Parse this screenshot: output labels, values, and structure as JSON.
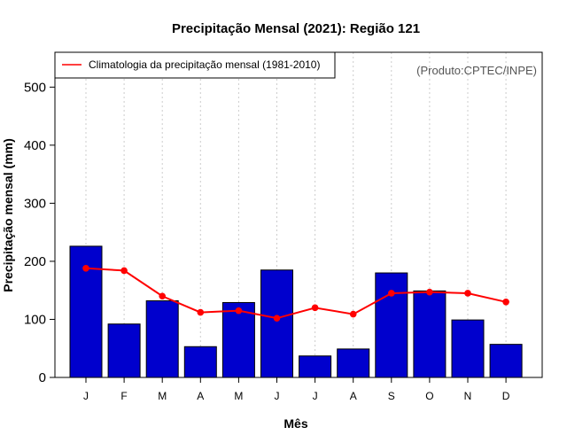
{
  "chart_data": {
    "type": "bar",
    "title": "Precipitação Mensal (2021): Região 121",
    "xlabel": "Mês",
    "ylabel": "Precipitação mensal (mm)",
    "ylim": [
      0,
      560
    ],
    "yticks": [
      0,
      100,
      200,
      300,
      400,
      500
    ],
    "categories": [
      "J",
      "F",
      "M",
      "A",
      "M",
      "J",
      "J",
      "A",
      "S",
      "O",
      "N",
      "D"
    ],
    "series": [
      {
        "name": "Precipitação mensal 2021",
        "type": "bar",
        "color": "#0000CD",
        "values": [
          226,
          92,
          132,
          53,
          129,
          185,
          37,
          49,
          180,
          149,
          99,
          57
        ]
      },
      {
        "name": "Climatologia da precipitação mensal (1981-2010)",
        "type": "line",
        "color": "#FF0000",
        "values": [
          188,
          184,
          140,
          112,
          115,
          102,
          120,
          109,
          145,
          147,
          145,
          130
        ]
      }
    ],
    "grid": "vertical dotted",
    "legend": {
      "position": "top-left",
      "entries": [
        "Climatologia da precipitação mensal (1981-2010)"
      ]
    },
    "annotation": "(Produto:CPTEC/INPE)"
  }
}
